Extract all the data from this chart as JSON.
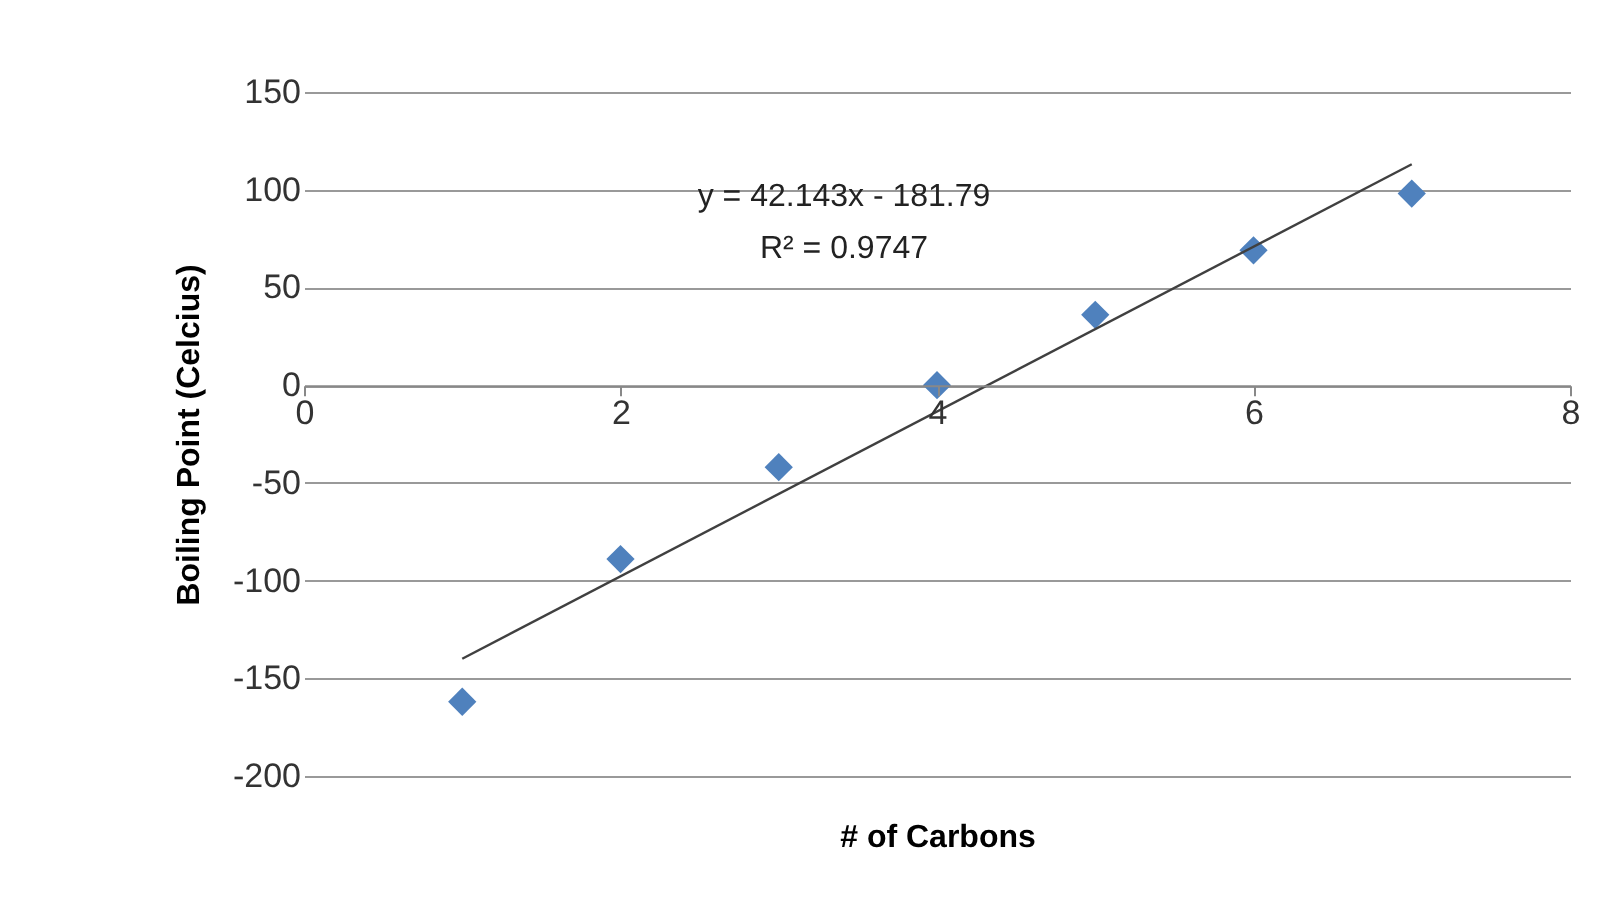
{
  "chart_data": {
    "type": "scatter",
    "xlabel": "# of Carbons",
    "ylabel": "Boiling Point (Celcius)",
    "annotations": [
      "y = 42.143x - 181.79",
      "R² = 0.9747"
    ],
    "series": [
      {
        "type": "scatter",
        "color": "#4f81bd",
        "x": [
          1,
          2,
          3,
          4,
          5,
          6,
          7
        ],
        "values": [
          -162,
          -89,
          -42,
          0,
          36,
          69,
          98
        ],
        "marker": "diamond"
      },
      {
        "type": "line",
        "color": "#404040",
        "x": [
          1,
          7
        ],
        "values": [
          -140,
          113
        ],
        "line_style": "solid"
      }
    ],
    "xlim": [
      0,
      8
    ],
    "xticks": [
      0,
      2,
      4,
      6,
      8
    ],
    "ylim": [
      -200,
      150
    ],
    "yticks": [
      -200,
      -150,
      -100,
      -50,
      0,
      50,
      100,
      150
    ],
    "grid": "y",
    "legend": false
  }
}
